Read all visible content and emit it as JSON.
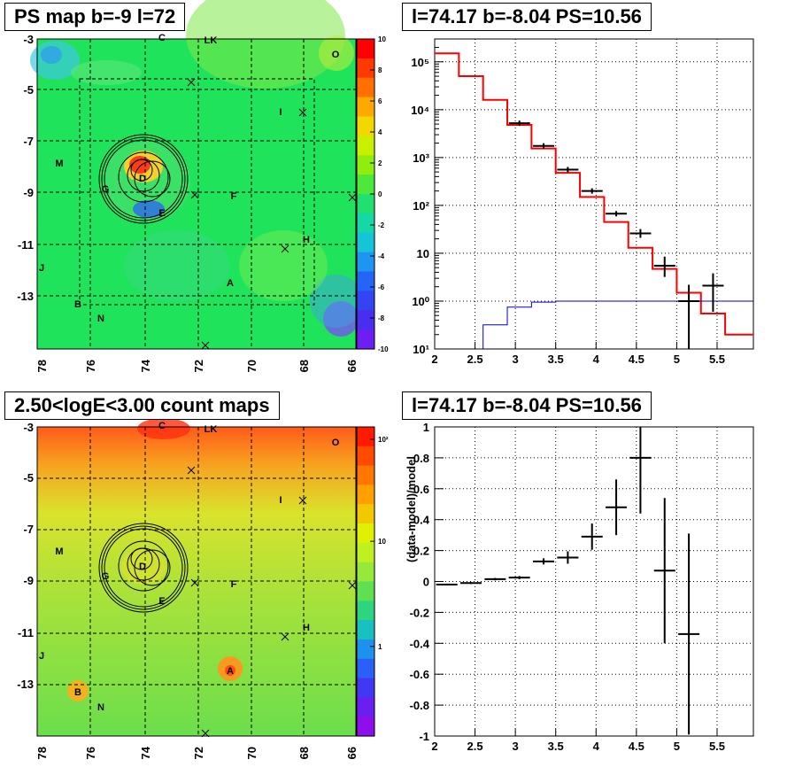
{
  "titles": {
    "tl": "PS map b=-9 l=72",
    "tr": "l=74.17 b=-8.04 PS=10.56",
    "bl": "2.50<logE<3.00 count maps",
    "br": "l=74.17 b=-8.04 PS=10.56"
  },
  "map_labels": [
    "C",
    "LK",
    "O",
    "I",
    "M",
    "D",
    "G",
    "F",
    "E",
    "H",
    "J",
    "A",
    "B",
    "N"
  ],
  "map_axes": {
    "x_ticks": [
      "78",
      "76",
      "74",
      "72",
      "70",
      "68",
      "66"
    ],
    "y_ticks": [
      "-3",
      "-5",
      "-7",
      "-9",
      "-11",
      "-13"
    ],
    "tl_colorbar_ticks": [
      "10",
      "8",
      "6",
      "4",
      "2",
      "0",
      "-2",
      "-4",
      "-6",
      "-8",
      "-10"
    ],
    "bl_colorbar_ticks": [
      "10²",
      "10",
      "1"
    ]
  },
  "colors": {
    "data": "#000000",
    "model": "#ff0000",
    "source": "#0000cc"
  },
  "chart_data": [
    {
      "type": "heatmap",
      "title": "PS map b=-9 l=72",
      "x_ticks": [
        78,
        76,
        74,
        72,
        70,
        68,
        66
      ],
      "y_ticks": [
        -3,
        -5,
        -7,
        -9,
        -11,
        -13
      ],
      "color_range": [
        -10,
        10
      ],
      "colorbar_ticks": [
        10,
        8,
        6,
        4,
        2,
        0,
        -2,
        -4,
        -6,
        -8,
        -10
      ]
    },
    {
      "type": "line",
      "title": "l=74.17 b=-8.04 PS=10.56",
      "x_ticks": [
        "2",
        "2.5",
        "3",
        "3.5",
        "4",
        "4.5",
        "5",
        "5.5"
      ],
      "y_scale": "log",
      "y_tick_labels": [
        "10¹",
        "10⁰",
        "10",
        "10²",
        "10³",
        "10⁴",
        "10⁵"
      ],
      "xlim": [
        2.0,
        5.95
      ],
      "ylim": [
        0.1,
        300000
      ],
      "model_steps": {
        "edges": [
          2.0,
          2.3,
          2.6,
          2.9,
          3.2,
          3.5,
          3.8,
          4.1,
          4.4,
          4.7,
          5.0,
          5.3,
          5.6,
          5.95
        ],
        "values": [
          150000,
          50000,
          16000,
          4800,
          1550,
          480,
          150,
          45,
          13,
          4.7,
          1.5,
          0.55,
          0.2
        ]
      },
      "source_steps": {
        "edges": [
          2.6,
          2.9,
          3.2,
          3.5,
          5.95
        ],
        "values": [
          0.32,
          0.75,
          0.95,
          1.0
        ]
      },
      "data_points": [
        {
          "x": 3.05,
          "y": 5200
        },
        {
          "x": 3.35,
          "y": 1750
        },
        {
          "x": 3.65,
          "y": 560
        },
        {
          "x": 3.95,
          "y": 200
        },
        {
          "x": 4.25,
          "y": 67
        },
        {
          "x": 4.55,
          "y": 26,
          "ylo": 21,
          "yhi": 32
        },
        {
          "x": 4.85,
          "y": 5.5,
          "ylo": 3.2,
          "yhi": 8.5
        },
        {
          "x": 5.15,
          "y": 1.0,
          "ylo": 0.1,
          "yhi": 2.2
        },
        {
          "x": 5.45,
          "y": 2.1,
          "ylo": 0.6,
          "yhi": 3.8
        }
      ]
    },
    {
      "type": "heatmap",
      "title": "2.50<logE<3.00 count maps",
      "x_ticks": [
        78,
        76,
        74,
        72,
        70,
        68,
        66
      ],
      "y_ticks": [
        -3,
        -5,
        -7,
        -9,
        -11,
        -13
      ],
      "color_scale": "log",
      "colorbar_ticks": [
        "10²",
        "10",
        "1"
      ]
    },
    {
      "type": "scatter",
      "title": "l=74.17 b=-8.04 PS=10.56",
      "ylabel": "(data-model)/model",
      "x_ticks": [
        "2",
        "2.5",
        "3",
        "3.5",
        "4",
        "4.5",
        "5",
        "5.5"
      ],
      "y_ticks": [
        "1",
        "0.8",
        "0.6",
        "0.4",
        "0.2",
        "0",
        "-0.2",
        "-0.4",
        "-0.6",
        "-0.8",
        "-1"
      ],
      "xlim": [
        2.0,
        5.95
      ],
      "ylim": [
        -1,
        1
      ],
      "points": [
        {
          "x": 2.15,
          "y": -0.02,
          "yerr": 0.006
        },
        {
          "x": 2.45,
          "y": -0.01,
          "yerr": 0.006
        },
        {
          "x": 2.75,
          "y": 0.015,
          "yerr": 0.008
        },
        {
          "x": 3.05,
          "y": 0.025,
          "yerr": 0.01
        },
        {
          "x": 3.35,
          "y": 0.13,
          "yerr": 0.02
        },
        {
          "x": 3.65,
          "y": 0.155,
          "yerr": 0.04
        },
        {
          "x": 3.95,
          "y": 0.29,
          "yerr": 0.085
        },
        {
          "x": 4.25,
          "y": 0.48,
          "yerr": 0.18
        },
        {
          "x": 4.55,
          "y": 0.8,
          "yerr": 0.36
        },
        {
          "x": 4.85,
          "y": 0.07,
          "yerr": 0.47
        },
        {
          "x": 5.15,
          "y": -0.34,
          "yerr": 0.65
        }
      ]
    }
  ]
}
